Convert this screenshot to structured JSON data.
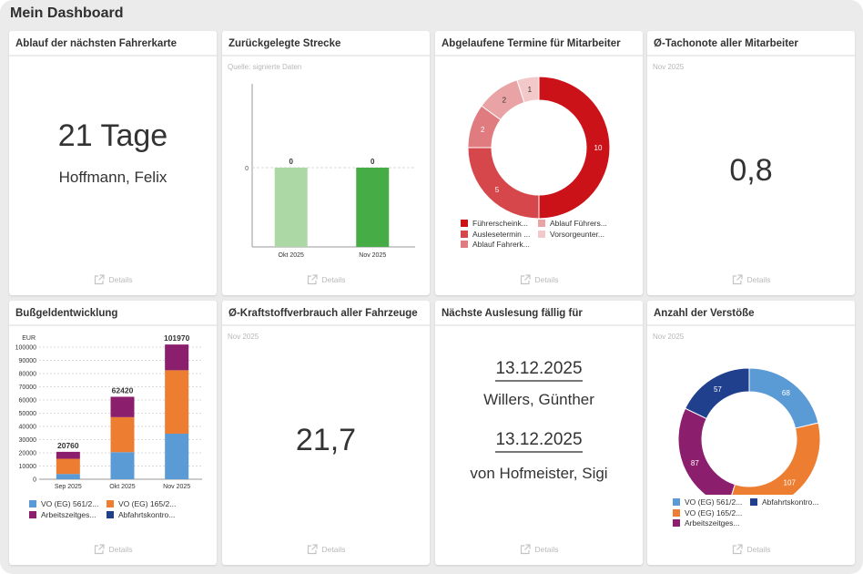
{
  "page": {
    "title": "Mein Dashboard"
  },
  "details_label": "Details",
  "cards": {
    "fahrerkarte": {
      "title": "Ablauf der nächsten Fahrerkarte",
      "value": "21 Tage",
      "name": "Hoffmann, Felix"
    },
    "strecke": {
      "title": "Zurückgelegte Strecke",
      "subtitle": "Quelle: signierte Daten"
    },
    "termine": {
      "title": "Abgelaufene Termine für Mitarbeiter"
    },
    "tachonote": {
      "title": "Ø-Tachonote aller Mitarbeiter",
      "subtitle": "Nov 2025",
      "value": "0,8"
    },
    "bussgeld": {
      "title": "Bußgeldentwicklung"
    },
    "kraftstoff": {
      "title": "Ø-Kraftstoffverbrauch aller Fahrzeuge",
      "subtitle": "Nov 2025",
      "value": "21,7"
    },
    "auslesung": {
      "title": "Nächste Auslesung fällig für",
      "entries": [
        {
          "date": "13.12.2025",
          "name": "Willers, Günther"
        },
        {
          "date": "13.12.2025",
          "name": "von Hofmeister, Sigi"
        }
      ]
    },
    "verstoesse": {
      "title": "Anzahl der Verstöße",
      "subtitle": "Nov 2025"
    }
  },
  "chart_data": [
    {
      "id": "strecke",
      "type": "bar",
      "categories": [
        "Okt 2025",
        "Nov 2025"
      ],
      "values": [
        0,
        0
      ],
      "data_labels": [
        "0",
        "0"
      ],
      "colors": [
        "#acd8a5",
        "#46ad46"
      ],
      "yticks": [
        "0"
      ],
      "title": "Zurückgelegte Strecke",
      "xlabel": "",
      "ylabel": ""
    },
    {
      "id": "termine",
      "type": "pie",
      "donut": true,
      "labels": [
        "Führerscheink...",
        "Auslesetermin ...",
        "Ablauf Fahrerk...",
        "Ablauf Führers...",
        "Vorsorgeunter..."
      ],
      "values": [
        10,
        5,
        2,
        2,
        1
      ],
      "colors": [
        "#cc1219",
        "#d6474b",
        "#e07b7f",
        "#e9a3a5",
        "#f2c8c9"
      ],
      "label_colors": [
        "#ffffff",
        "#ffffff",
        "#ffffff",
        "#333333",
        "#333333"
      ],
      "legend": "bottom"
    },
    {
      "id": "bussgeld",
      "type": "bar",
      "stacked": true,
      "categories": [
        "Sep 2025",
        "Okt 2025",
        "Nov 2025"
      ],
      "series": [
        {
          "name": "VO (EG) 561/2...",
          "color": "#5b9bd5",
          "values": [
            4000,
            20500,
            34500
          ]
        },
        {
          "name": "VO (EG) 165/2...",
          "color": "#ed7d31",
          "values": [
            11500,
            26500,
            48000
          ]
        },
        {
          "name": "Arbeitszeitges...",
          "color": "#8c1e6e",
          "values": [
            5260,
            15420,
            19470
          ]
        },
        {
          "name": "Abfahrtskontro...",
          "color": "#203f8c",
          "values": [
            0,
            0,
            0
          ]
        }
      ],
      "totals": [
        "20760",
        "62420",
        "101970"
      ],
      "ylabel": "EUR",
      "ylim": [
        0,
        100000
      ],
      "yticks": [
        "0",
        "10000",
        "20000",
        "30000",
        "40000",
        "50000",
        "60000",
        "70000",
        "80000",
        "90000",
        "100000"
      ],
      "grid": true,
      "legend": "bottom"
    },
    {
      "id": "verstoesse",
      "type": "pie",
      "donut": true,
      "labels": [
        "VO (EG) 561/2...",
        "VO (EG) 165/2...",
        "Arbeitszeitges...",
        "Abfahrtskontro..."
      ],
      "values": [
        68,
        107,
        87,
        57
      ],
      "colors": [
        "#5b9bd5",
        "#ed7d31",
        "#8c1e6e",
        "#203f8c"
      ],
      "label_colors": [
        "#ffffff",
        "#ffffff",
        "#ffffff",
        "#ffffff"
      ],
      "legend": "bottom"
    }
  ]
}
